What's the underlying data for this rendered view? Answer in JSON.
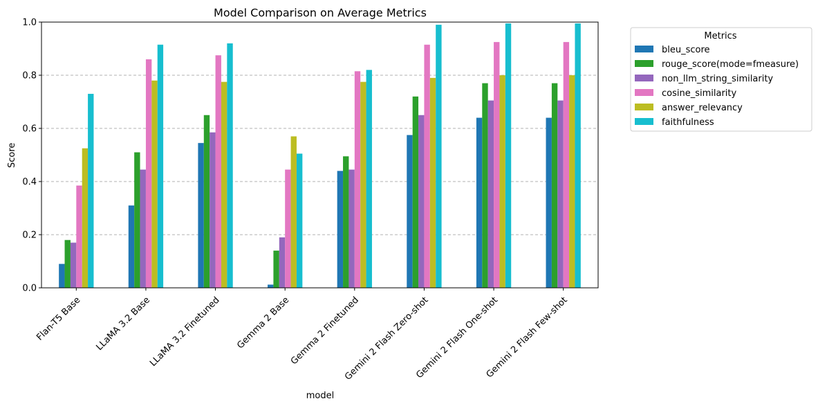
{
  "chart_data": {
    "type": "bar",
    "title": "Model Comparison on Average Metrics",
    "xlabel": "model",
    "ylabel": "Score",
    "ylim": [
      0,
      1.0
    ],
    "yticks": [
      "0.0",
      "0.2",
      "0.4",
      "0.6",
      "0.8",
      "1.0"
    ],
    "grid": "y-dashed",
    "legend_title": "Metrics",
    "legend_position": "outside-top-right",
    "categories": [
      "Flan-T5 Base",
      "LLaMA 3.2 Base",
      "LLaMA 3.2 Finetuned",
      "Gemma 2 Base",
      "Gemma 2 Finetuned",
      "Gemini 2 Flash Zero-shot",
      "Gemini 2 Flash One-shot",
      "Gemini 2 Flash Few-shot"
    ],
    "series": [
      {
        "name": "bleu_score",
        "color": "#1f77b4",
        "values": [
          0.09,
          0.31,
          0.545,
          0.012,
          0.44,
          0.575,
          0.64,
          0.64
        ]
      },
      {
        "name": "rouge_score(mode=fmeasure)",
        "color": "#2ca02c",
        "values": [
          0.18,
          0.51,
          0.65,
          0.14,
          0.495,
          0.72,
          0.77,
          0.77
        ]
      },
      {
        "name": "non_llm_string_similarity",
        "color": "#9467bd",
        "values": [
          0.17,
          0.445,
          0.585,
          0.19,
          0.445,
          0.65,
          0.705,
          0.705
        ]
      },
      {
        "name": "cosine_similarity",
        "color": "#e377c2",
        "values": [
          0.385,
          0.86,
          0.875,
          0.445,
          0.815,
          0.915,
          0.925,
          0.925
        ]
      },
      {
        "name": "answer_relevancy",
        "color": "#bcbd22",
        "values": [
          0.525,
          0.78,
          0.775,
          0.57,
          0.775,
          0.79,
          0.8,
          0.8
        ]
      },
      {
        "name": "faithfulness",
        "color": "#17becf",
        "values": [
          0.73,
          0.915,
          0.92,
          0.505,
          0.82,
          0.99,
          0.995,
          0.995
        ]
      }
    ]
  }
}
